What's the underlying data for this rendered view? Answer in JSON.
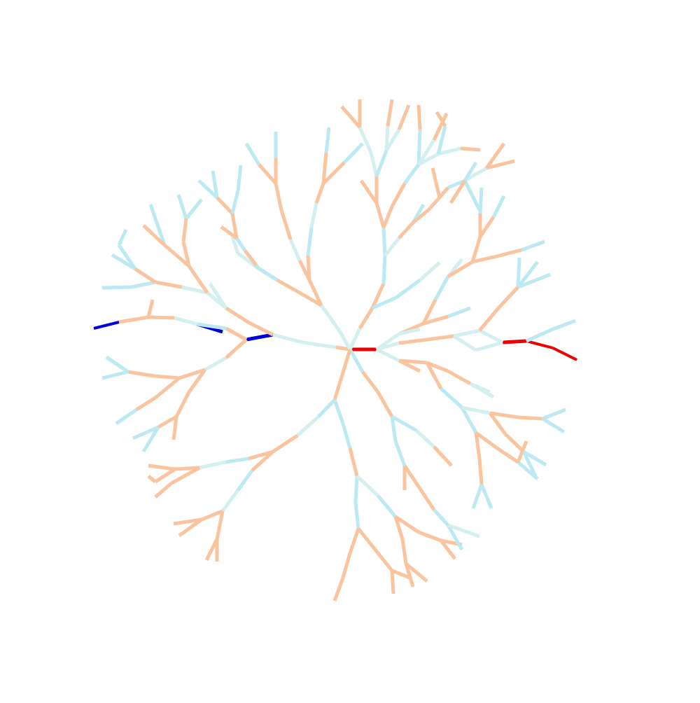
{
  "diagram": {
    "type": "radial-tree",
    "colors": {
      "background": "#ffffff",
      "orange": "#f9c49e",
      "light_blue": "#bde9f2",
      "pale_cyan": "#d4eff0",
      "red": "#ee0000",
      "blue": "#0000dd"
    },
    "highlighted_paths": [
      {
        "name": "red-path",
        "color": "red"
      },
      {
        "name": "blue-path",
        "color": "blue"
      }
    ]
  }
}
